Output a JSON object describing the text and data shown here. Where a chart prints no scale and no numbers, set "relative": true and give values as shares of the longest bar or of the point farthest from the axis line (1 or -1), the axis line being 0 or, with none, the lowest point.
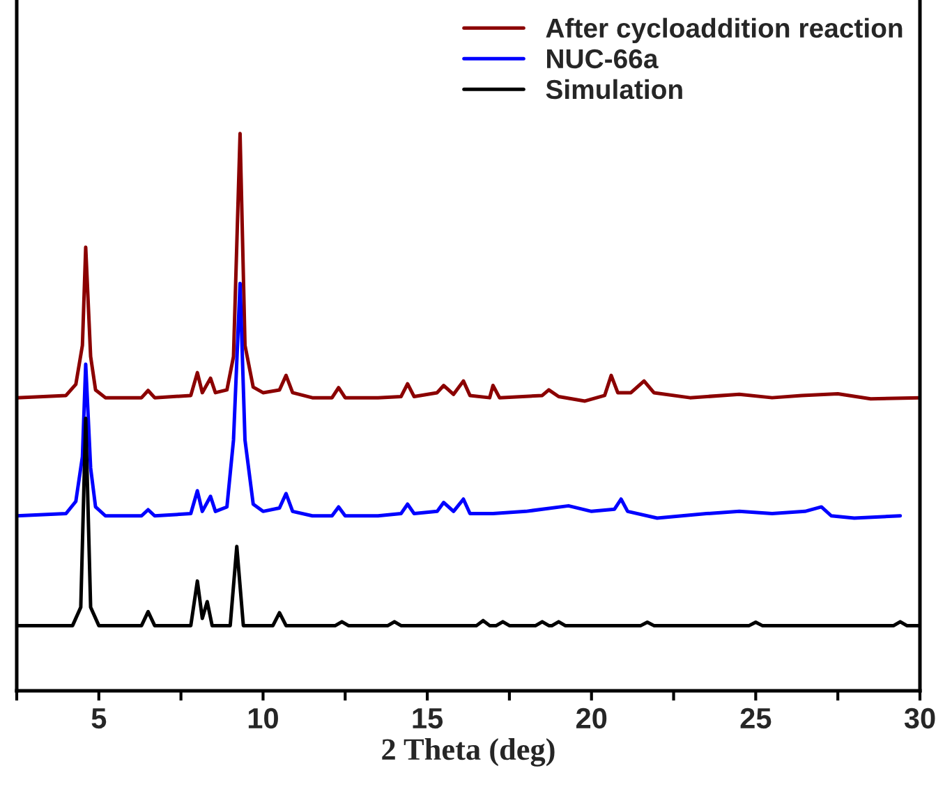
{
  "chart_data": {
    "type": "line",
    "relative": true,
    "xlabel": "2 Theta (deg)",
    "xlim": [
      2.5,
      30
    ],
    "xticks": [
      {
        "value": 2.5,
        "label": null
      },
      5,
      {
        "value": 7.5,
        "label": null
      },
      10,
      {
        "value": 12.5,
        "label": null
      },
      15,
      {
        "value": 17.5,
        "label": null
      },
      20,
      {
        "value": 22.5,
        "label": null
      },
      25,
      {
        "value": 27.5,
        "label": null
      },
      30
    ],
    "tick_labels": "x",
    "legend": "top right",
    "marker": "none",
    "line_style": "solid",
    "grid": false,
    "series": [
      {
        "name": "After cycloaddition reaction",
        "color": "#8b0000",
        "x": [
          2.5,
          4.0,
          4.3,
          4.5,
          4.6,
          4.75,
          4.9,
          5.2,
          6.3,
          6.5,
          6.7,
          7.8,
          8.0,
          8.15,
          8.4,
          8.55,
          8.9,
          9.1,
          9.3,
          9.45,
          9.7,
          10.0,
          10.5,
          10.7,
          10.9,
          11.5,
          12.1,
          12.3,
          12.5,
          13.5,
          14.2,
          14.4,
          14.6,
          15.3,
          15.5,
          15.8,
          16.1,
          16.3,
          16.9,
          17.0,
          17.2,
          18.5,
          18.7,
          19.0,
          19.8,
          20.4,
          20.6,
          20.8,
          21.2,
          21.6,
          21.9,
          23.0,
          24.5,
          25.5,
          26.4,
          27.5,
          28.5,
          30.0
        ],
        "values": [
          0.526,
          0.53,
          0.55,
          0.62,
          0.796,
          0.6,
          0.54,
          0.526,
          0.526,
          0.539,
          0.526,
          0.53,
          0.571,
          0.535,
          0.561,
          0.535,
          0.54,
          0.6,
          1.0,
          0.62,
          0.545,
          0.535,
          0.54,
          0.566,
          0.535,
          0.526,
          0.526,
          0.544,
          0.526,
          0.526,
          0.528,
          0.551,
          0.528,
          0.535,
          0.548,
          0.532,
          0.556,
          0.53,
          0.526,
          0.548,
          0.526,
          0.53,
          0.54,
          0.528,
          0.52,
          0.53,
          0.566,
          0.535,
          0.535,
          0.556,
          0.535,
          0.526,
          0.532,
          0.526,
          0.53,
          0.533,
          0.524,
          0.526
        ]
      },
      {
        "name": "NUC-66a",
        "color": "#0000ff",
        "x": [
          2.5,
          4.0,
          4.3,
          4.5,
          4.6,
          4.75,
          4.9,
          5.2,
          6.3,
          6.5,
          6.7,
          7.8,
          8.0,
          8.15,
          8.4,
          8.55,
          8.9,
          9.1,
          9.3,
          9.45,
          9.7,
          10.0,
          10.5,
          10.7,
          10.9,
          11.5,
          12.1,
          12.3,
          12.5,
          13.5,
          14.2,
          14.4,
          14.6,
          15.3,
          15.5,
          15.8,
          16.1,
          16.3,
          17.0,
          18.0,
          19.3,
          20.0,
          20.7,
          20.9,
          21.1,
          22.0,
          23.5,
          24.5,
          25.5,
          26.5,
          27.0,
          27.3,
          28.0,
          29.4
        ],
        "values": [
          0.314,
          0.318,
          0.34,
          0.42,
          0.586,
          0.4,
          0.33,
          0.314,
          0.314,
          0.325,
          0.314,
          0.318,
          0.359,
          0.322,
          0.349,
          0.322,
          0.33,
          0.45,
          0.731,
          0.45,
          0.335,
          0.322,
          0.328,
          0.354,
          0.322,
          0.314,
          0.314,
          0.33,
          0.314,
          0.314,
          0.318,
          0.335,
          0.318,
          0.322,
          0.338,
          0.322,
          0.344,
          0.318,
          0.318,
          0.322,
          0.332,
          0.322,
          0.326,
          0.344,
          0.322,
          0.31,
          0.318,
          0.322,
          0.318,
          0.322,
          0.33,
          0.314,
          0.31,
          0.314
        ]
      },
      {
        "name": "Simulation",
        "color": "#000000",
        "x": [
          2.5,
          4.2,
          4.45,
          4.6,
          4.75,
          5.0,
          6.3,
          6.5,
          6.7,
          7.8,
          8.0,
          8.15,
          8.3,
          8.45,
          9.0,
          9.2,
          9.4,
          10.3,
          10.5,
          10.7,
          12.2,
          12.4,
          12.6,
          13.8,
          14.0,
          14.2,
          16.5,
          16.7,
          16.9,
          17.1,
          17.3,
          17.5,
          18.3,
          18.5,
          18.7,
          18.8,
          19.0,
          19.2,
          21.5,
          21.7,
          21.9,
          24.8,
          25.0,
          25.2,
          29.2,
          29.4,
          29.6,
          30.0
        ],
        "values": [
          0.117,
          0.117,
          0.15,
          0.489,
          0.15,
          0.117,
          0.117,
          0.142,
          0.117,
          0.117,
          0.197,
          0.13,
          0.16,
          0.117,
          0.117,
          0.259,
          0.117,
          0.117,
          0.14,
          0.117,
          0.117,
          0.124,
          0.117,
          0.117,
          0.124,
          0.117,
          0.117,
          0.126,
          0.117,
          0.117,
          0.124,
          0.117,
          0.117,
          0.124,
          0.117,
          0.117,
          0.124,
          0.117,
          0.117,
          0.123,
          0.117,
          0.117,
          0.123,
          0.117,
          0.117,
          0.124,
          0.117,
          0.117
        ]
      }
    ]
  }
}
